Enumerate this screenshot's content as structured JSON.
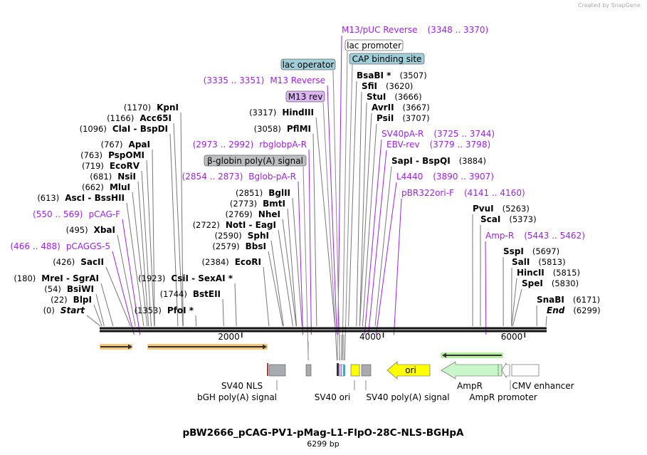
{
  "credit": "Created by SnapGene",
  "title": "pBW2666_pCAG-PV1-pMag-L1-FlpO-28C-NLS-BGHpA",
  "length_label": "6299 bp",
  "length_bp": 6299,
  "ruler": [
    {
      "bp": 2000,
      "label": "2000"
    },
    {
      "bp": 4000,
      "label": "4000"
    },
    {
      "bp": 6000,
      "label": "6000"
    }
  ],
  "colors": {
    "primer": "#a020f0",
    "lac": "#9fcfd8",
    "m13rev": "#dcb5f5",
    "globin": "#bcbec0",
    "ori": "#ffff00",
    "ampr": "#c9f7c9",
    "cds": "#f7c77a",
    "gray": "#a7aaae"
  },
  "sites": [
    {
      "name": "Start",
      "pos": "(0)",
      "bp": 0,
      "italic": true
    },
    {
      "name": "BlpI",
      "pos": "(22)",
      "bp": 22
    },
    {
      "name": "BsiWI",
      "pos": "(54)",
      "bp": 54
    },
    {
      "name": "MreI  - SgrAI",
      "pos": "(180)",
      "bp": 180
    },
    {
      "name": "SacII",
      "pos": "(426)",
      "bp": 426
    },
    {
      "name": "pCAGGS-5",
      "pos": "(466 .. 488)",
      "bp": 477,
      "primer": true
    },
    {
      "name": "XbaI",
      "pos": "(495)",
      "bp": 495
    },
    {
      "name": "pCAG-F",
      "pos": "(550 .. 569)",
      "bp": 560,
      "primer": true
    },
    {
      "name": "AscI  - BssHII",
      "pos": "(613)",
      "bp": 613
    },
    {
      "name": "MluI",
      "pos": "(662)",
      "bp": 662
    },
    {
      "name": "NsiI",
      "pos": "(681)",
      "bp": 681
    },
    {
      "name": "EcoRV",
      "pos": "(719)",
      "bp": 719
    },
    {
      "name": "PspOMI",
      "pos": "(763)",
      "bp": 763
    },
    {
      "name": "ApaI",
      "pos": "(767)",
      "bp": 767
    },
    {
      "name": "ClaI  - BspDI",
      "pos": "(1096)",
      "bp": 1096
    },
    {
      "name": "Acc65I",
      "pos": "(1166)",
      "bp": 1166
    },
    {
      "name": "KpnI",
      "pos": "(1170)",
      "bp": 1170
    },
    {
      "name": "PfoI *",
      "pos": "(1353)",
      "bp": 1353
    },
    {
      "name": "BstEII",
      "pos": "(1744)",
      "bp": 1744
    },
    {
      "name": "CsiI  - SexAI *",
      "pos": "(1923)",
      "bp": 1923
    },
    {
      "name": "EcoRI",
      "pos": "(2384)",
      "bp": 2384
    },
    {
      "name": "BbsI",
      "pos": "(2579)",
      "bp": 2579
    },
    {
      "name": "SphI",
      "pos": "(2590)",
      "bp": 2590
    },
    {
      "name": "NotI  - EagI",
      "pos": "(2722)",
      "bp": 2722
    },
    {
      "name": "NheI",
      "pos": "(2769)",
      "bp": 2769
    },
    {
      "name": "BmtI",
      "pos": "(2773)",
      "bp": 2773
    },
    {
      "name": "BglII",
      "pos": "(2851)",
      "bp": 2851
    },
    {
      "name": "Bglob-pA-R",
      "pos": "(2854 .. 2873)",
      "bp": 2863,
      "primer": true
    },
    {
      "name": "rbglobpA-R",
      "pos": "(2973 .. 2992)",
      "bp": 2982,
      "primer": true
    },
    {
      "name": "PflMI",
      "pos": "(3058)",
      "bp": 3058
    },
    {
      "name": "HindIII",
      "pos": "(3317)",
      "bp": 3317
    },
    {
      "name": "M13 Reverse",
      "pos": "(3335 .. 3351)",
      "bp": 3343,
      "primer": true
    },
    {
      "name": "M13/pUC Reverse",
      "pos": "(3348 .. 3370)",
      "bp": 3359,
      "primer": true
    },
    {
      "name": "BsaBI *",
      "pos": "(3507)",
      "bp": 3507
    },
    {
      "name": "SfiI",
      "pos": "(3620)",
      "bp": 3620
    },
    {
      "name": "StuI",
      "pos": "(3666)",
      "bp": 3666
    },
    {
      "name": "AvrII",
      "pos": "(3667)",
      "bp": 3667
    },
    {
      "name": "PsiI",
      "pos": "(3707)",
      "bp": 3707
    },
    {
      "name": "SV40pA-R",
      "pos": "(3725 .. 3744)",
      "bp": 3735,
      "primer": true
    },
    {
      "name": "EBV-rev",
      "pos": "(3779 .. 3798)",
      "bp": 3789,
      "primer": true
    },
    {
      "name": "SapI  - BspQI",
      "pos": "(3884)",
      "bp": 3884
    },
    {
      "name": "L4440",
      "pos": "(3890 .. 3907)",
      "bp": 3898,
      "primer": true
    },
    {
      "name": "pBR322ori-F",
      "pos": "(4141 .. 4160)",
      "bp": 4150,
      "primer": true
    },
    {
      "name": "PvuI",
      "pos": "(5263)",
      "bp": 5263
    },
    {
      "name": "ScaI",
      "pos": "(5373)",
      "bp": 5373
    },
    {
      "name": "Amp-R",
      "pos": "(5443 .. 5462)",
      "bp": 5452,
      "primer": true
    },
    {
      "name": "SspI",
      "pos": "(5697)",
      "bp": 5697
    },
    {
      "name": "SalI",
      "pos": "(5813)",
      "bp": 5813
    },
    {
      "name": "HincII",
      "pos": "(5815)",
      "bp": 5815
    },
    {
      "name": "SpeI",
      "pos": "(5830)",
      "bp": 5830
    },
    {
      "name": "SnaBI",
      "pos": "(6171)",
      "bp": 6171
    },
    {
      "name": "End",
      "pos": "(6299)",
      "bp": 6299,
      "italic": true
    }
  ],
  "boxed_features": [
    {
      "name": "β-globin poly(A) signal",
      "bp": 2940,
      "color": "#bcbec0"
    },
    {
      "name": "M13 rev",
      "bp": 3345,
      "color": "#dcb5f5"
    },
    {
      "name": "lac operator",
      "bp": 3385,
      "color": "#9fcfd8"
    },
    {
      "name": "lac promoter",
      "bp": 3420,
      "color": "#ffffff"
    },
    {
      "name": "CAP binding site",
      "bp": 3455,
      "color": "#9fcfd8"
    }
  ],
  "bottom_features": [
    {
      "name": "SV40 NLS"
    },
    {
      "name": "bGH poly(A) signal"
    },
    {
      "name": "SV40 ori"
    },
    {
      "name": "SV40 poly(A) signal"
    },
    {
      "name": "ori"
    },
    {
      "name": "AmpR"
    },
    {
      "name": "AmpR promoter"
    },
    {
      "name": "CMV enhancer"
    }
  ]
}
